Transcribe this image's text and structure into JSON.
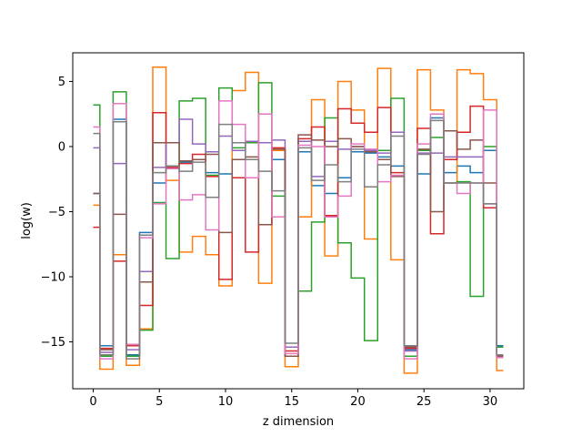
{
  "chart_data": {
    "type": "line",
    "step": "mid",
    "title": "",
    "xlabel": "z dimension",
    "ylabel": "log(w)",
    "xlim": [
      -1.55,
      32.55
    ],
    "ylim": [
      -18.6,
      7.2
    ],
    "xticks": [
      0,
      5,
      10,
      15,
      20,
      25,
      30
    ],
    "yticks": [
      -15,
      -10,
      -5,
      0,
      5
    ],
    "x": [
      0,
      1,
      2,
      3,
      4,
      5,
      6,
      7,
      8,
      9,
      10,
      11,
      12,
      13,
      14,
      15,
      16,
      17,
      18,
      19,
      20,
      21,
      22,
      23,
      24,
      25,
      26,
      27,
      28,
      29,
      30,
      31
    ],
    "series": [
      {
        "color": "#1f77b4",
        "values": [
          -3.6,
          -15.3,
          2.1,
          -16.0,
          -6.6,
          -2.8,
          -1.5,
          -1.2,
          -1.0,
          -2.0,
          -2.1,
          -2.4,
          -2.4,
          0.3,
          -1.0,
          -15.4,
          -0.4,
          -3.0,
          -3.6,
          -2.4,
          -0.4,
          -0.5,
          -0.8,
          -1.5,
          -15.6,
          -2.1,
          2.2,
          -2.0,
          -1.5,
          -2.0,
          -0.3,
          -15.3
        ]
      },
      {
        "color": "#ff7f0e",
        "values": [
          -4.5,
          -17.1,
          -8.3,
          -16.8,
          -14.0,
          6.1,
          -2.6,
          -8.1,
          -6.9,
          -8.3,
          -10.7,
          4.3,
          5.7,
          -10.5,
          -0.3,
          -16.9,
          -5.4,
          3.6,
          -8.4,
          5.0,
          2.8,
          -7.1,
          6.0,
          -8.7,
          -17.4,
          5.9,
          2.8,
          -2.8,
          5.9,
          5.6,
          3.6,
          -17.2
        ]
      },
      {
        "color": "#2ca02c",
        "values": [
          3.2,
          -16.1,
          4.2,
          -16.1,
          -14.1,
          -4.3,
          -8.6,
          3.5,
          3.7,
          -2.2,
          4.5,
          -0.1,
          0.3,
          4.9,
          -3.8,
          -16.1,
          -11.1,
          -5.8,
          2.2,
          -7.4,
          -10.1,
          -14.9,
          -0.3,
          3.7,
          -16.1,
          -0.3,
          0.7,
          -2.8,
          -2.7,
          -11.5,
          0.0,
          -15.4
        ]
      },
      {
        "color": "#d62728",
        "values": [
          -6.2,
          -15.5,
          -8.8,
          -15.3,
          -12.2,
          2.6,
          -1.6,
          -1.3,
          -0.6,
          -2.3,
          -10.2,
          -2.4,
          -8.1,
          -6.0,
          -0.1,
          -15.7,
          0.6,
          1.5,
          -5.3,
          2.9,
          1.8,
          1.1,
          3.0,
          -2.0,
          -15.5,
          1.4,
          -6.7,
          -1.0,
          1.1,
          3.1,
          -4.7,
          -16.2
        ]
      },
      {
        "color": "#9467bd",
        "values": [
          -0.1,
          -15.8,
          -1.3,
          -15.6,
          -9.6,
          -1.6,
          0.3,
          2.1,
          0.2,
          -0.4,
          0.8,
          -0.3,
          0.4,
          0.3,
          0.5,
          -15.4,
          0.4,
          -2.3,
          0.4,
          -0.2,
          0.0,
          -0.3,
          -0.5,
          1.1,
          -15.7,
          -0.5,
          -0.5,
          -0.8,
          -0.8,
          -0.8,
          -4.4,
          -16.1
        ]
      },
      {
        "color": "#8c564b",
        "values": [
          -3.6,
          -15.6,
          -5.2,
          -15.2,
          -10.4,
          0.3,
          0.3,
          -1.1,
          -1.0,
          -0.6,
          -6.6,
          -1.0,
          -0.8,
          -6.0,
          -0.2,
          -16.1,
          0.9,
          0.5,
          0.0,
          0.6,
          0.0,
          -0.4,
          -1.0,
          -2.3,
          -15.4,
          -0.2,
          -5.0,
          1.2,
          -0.2,
          0.5,
          -2.8,
          -16.1
        ]
      },
      {
        "color": "#e377c2",
        "values": [
          1.5,
          -16.3,
          3.3,
          -15.2,
          -7.0,
          -4.4,
          -1.7,
          -4.1,
          -3.7,
          -6.4,
          3.5,
          1.7,
          -2.4,
          2.5,
          -5.4,
          -15.9,
          0.1,
          0.0,
          -5.4,
          -3.8,
          0.2,
          -0.2,
          -2.7,
          -2.2,
          -16.3,
          0.2,
          2.5,
          -2.8,
          -3.6,
          -2.8,
          2.8,
          -16.2
        ]
      },
      {
        "color": "#7f7f7f",
        "values": [
          1.0,
          -16.0,
          1.9,
          -16.3,
          -6.8,
          -2.0,
          -1.5,
          -1.9,
          -1.2,
          -3.9,
          1.7,
          0.3,
          -1.0,
          -1.9,
          -3.4,
          -15.1,
          -0.1,
          -2.6,
          -1.4,
          -2.7,
          -0.2,
          -3.1,
          -1.4,
          0.8,
          -15.3,
          -0.6,
          2.0,
          -2.8,
          -2.8,
          -2.8,
          -4.4,
          -16.0
        ]
      }
    ]
  }
}
